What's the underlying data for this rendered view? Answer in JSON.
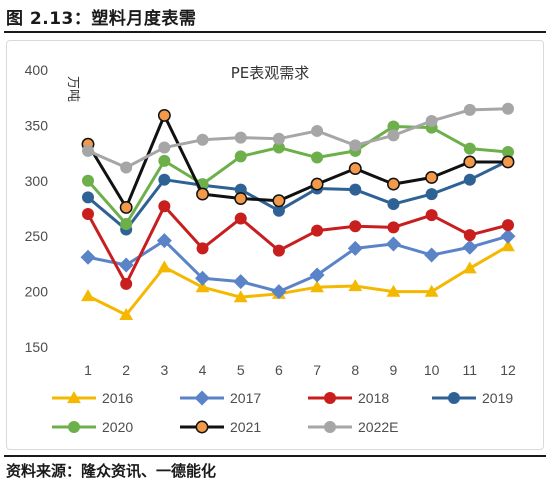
{
  "header": {
    "figure_title": "图 2.13：塑料月度表需"
  },
  "footer": {
    "source": "资料来源：隆众资讯、一德能化"
  },
  "chart_data": {
    "type": "line",
    "title": "PE表观需求",
    "ylabel": "万吨",
    "xlabel": "",
    "ylim": [
      150,
      400
    ],
    "yticks": [
      150,
      200,
      250,
      300,
      350,
      400
    ],
    "categories": [
      "1",
      "2",
      "3",
      "4",
      "5",
      "6",
      "7",
      "8",
      "9",
      "10",
      "11",
      "12"
    ],
    "grid": false,
    "legend_position": "bottom",
    "series": [
      {
        "name": "2016",
        "color": "#F5B800",
        "marker": "triangle",
        "values": [
          196,
          179,
          222,
          204,
          195,
          198,
          204,
          205,
          200,
          200,
          221,
          241
        ]
      },
      {
        "name": "2017",
        "color": "#5B83C8",
        "marker": "diamond",
        "values": [
          231,
          224,
          246,
          212,
          209,
          200,
          215,
          239,
          243,
          233,
          240,
          250
        ]
      },
      {
        "name": "2018",
        "color": "#C81E1E",
        "marker": "circle",
        "values": [
          270,
          207,
          277,
          239,
          266,
          237,
          255,
          259,
          258,
          269,
          251,
          260
        ]
      },
      {
        "name": "2019",
        "color": "#2F6294",
        "marker": "circle",
        "values": [
          285,
          256,
          301,
          296,
          292,
          273,
          293,
          292,
          279,
          288,
          301,
          318
        ]
      },
      {
        "name": "2020",
        "color": "#6DB04B",
        "marker": "circle",
        "values": [
          300,
          261,
          318,
          297,
          322,
          330,
          321,
          327,
          349,
          348,
          329,
          326
        ]
      },
      {
        "name": "2021",
        "color": "#111111",
        "marker": "circle-orange",
        "values": [
          333,
          276,
          359,
          288,
          284,
          282,
          297,
          311,
          297,
          303,
          317,
          317
        ]
      },
      {
        "name": "2022E",
        "color": "#A6A6A6",
        "marker": "circle",
        "values": [
          327,
          312,
          330,
          337,
          339,
          338,
          345,
          332,
          341,
          354,
          364,
          365
        ]
      }
    ]
  }
}
